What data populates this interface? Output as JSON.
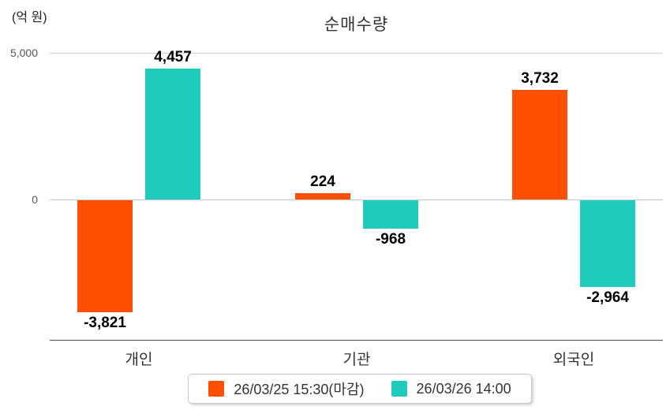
{
  "unit_label": "(억 원)",
  "chart_data": {
    "type": "bar",
    "title": "순매수량",
    "unit": "억 원",
    "categories": [
      "개인",
      "기관",
      "외국인"
    ],
    "series": [
      {
        "name": "26/03/25 15:30(마감)",
        "color": "#FF5000",
        "values": [
          -3821,
          224,
          3732
        ],
        "value_labels": [
          "-3,821",
          "224",
          "3,732"
        ]
      },
      {
        "name": "26/03/26 14:00",
        "color": "#1FCBBC",
        "values": [
          4457,
          -968,
          -2964
        ],
        "value_labels": [
          "4,457",
          "-968",
          "-2,964"
        ]
      }
    ],
    "y_ticks": [
      {
        "value": 5000,
        "label": "5,000"
      },
      {
        "value": 0,
        "label": "0"
      }
    ],
    "ylim": [
      -5000,
      5000
    ],
    "grid": "horizontal",
    "legend_position": "bottom"
  }
}
